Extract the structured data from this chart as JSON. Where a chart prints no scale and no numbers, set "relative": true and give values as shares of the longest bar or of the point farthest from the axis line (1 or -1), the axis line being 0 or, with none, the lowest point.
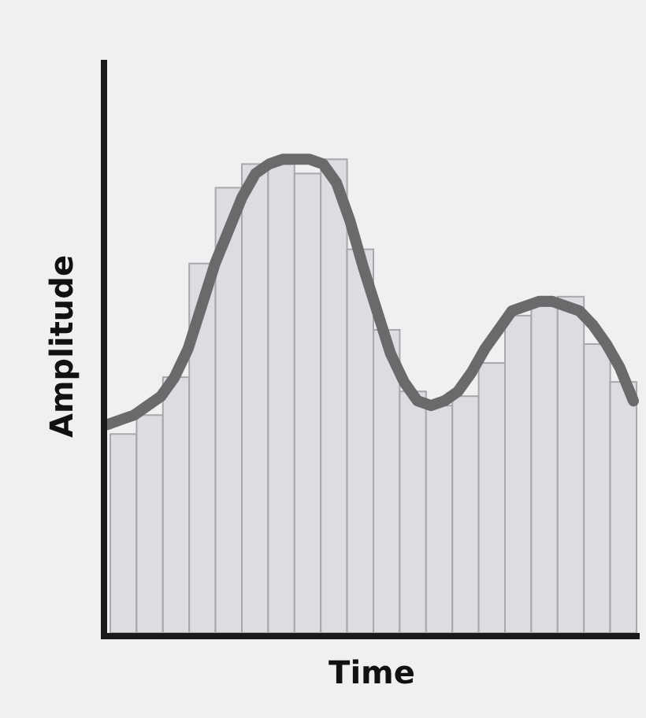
{
  "chart_data": [
    {
      "type": "bar",
      "relative": true,
      "xlabel": "Time",
      "ylabel": "Amplitude",
      "categories": [
        null,
        null,
        null,
        null,
        null,
        null,
        null,
        null,
        null,
        null,
        null,
        null,
        null,
        null,
        null,
        null,
        null,
        null,
        null,
        null
      ],
      "color": "#dcdde0",
      "values": [
        0.42,
        0.46,
        0.54,
        0.78,
        0.94,
        0.99,
        0.99,
        0.97,
        1,
        0.81,
        0.64,
        0.51,
        0.48,
        0.5,
        0.57,
        0.67,
        0.69,
        0.71,
        0.61,
        0.53
      ]
    },
    {
      "type": "line",
      "relative": true,
      "categories": [
        null,
        null,
        null,
        null,
        null,
        null,
        null,
        null,
        null,
        null,
        null,
        null,
        null,
        null,
        null,
        null,
        null,
        null,
        null,
        null,
        null,
        null,
        null,
        null,
        null,
        null,
        null,
        null,
        null,
        null,
        null,
        null,
        null,
        null,
        null,
        null,
        null,
        null,
        null,
        null
      ],
      "color": "#6a6a6c",
      "values": [
        0.44,
        0.45,
        0.46,
        0.48,
        0.5,
        0.54,
        0.6,
        0.69,
        0.78,
        0.85,
        0.92,
        0.97,
        0.99,
        1,
        1,
        1,
        0.99,
        0.95,
        0.87,
        0.77,
        0.68,
        0.59,
        0.53,
        0.49,
        0.48,
        0.49,
        0.51,
        0.55,
        0.6,
        0.64,
        0.68,
        0.69,
        0.7,
        0.7,
        0.69,
        0.68,
        0.65,
        0.61,
        0.56,
        0.49
      ]
    }
  ]
}
